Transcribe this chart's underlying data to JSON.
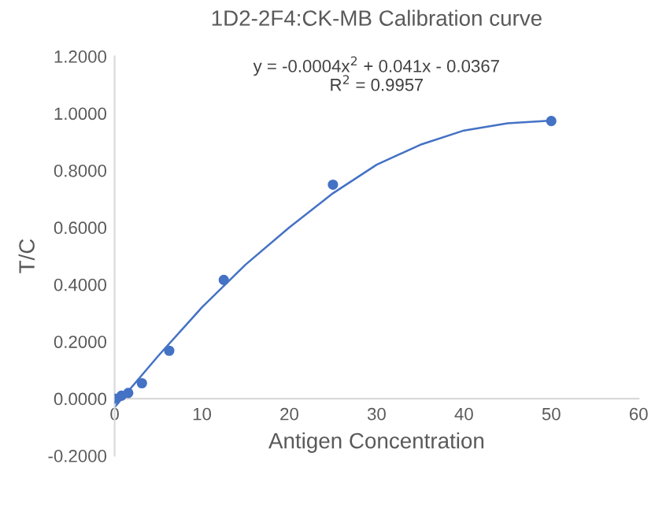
{
  "chart_data": {
    "type": "scatter",
    "title": "1D2-2F4:CK-MB Calibration curve",
    "xlabel": "Antigen Concentration",
    "ylabel": "T/C",
    "annotations": [
      "y = -0.0004x$^{2}$ + 0.041x - 0.0367",
      "R$^{2}$ = 0.9957"
    ],
    "series": [
      {
        "color": "#4472c4",
        "x": [
          0,
          0.78,
          1.56,
          3.125,
          6.25,
          12.5,
          25,
          50
        ],
        "values": [
          0.0,
          0.01,
          0.02,
          0.054,
          0.168,
          0.416,
          0.75,
          0.973
        ],
        "marker": "circle"
      },
      {
        "type": "line",
        "color": "#4472c4",
        "x": [
          0,
          5,
          10,
          15,
          20,
          25,
          30,
          35,
          40,
          45,
          50
        ],
        "values": [
          -0.03,
          0.15,
          0.32,
          0.47,
          0.6,
          0.72,
          0.82,
          0.89,
          0.94,
          0.965,
          0.975
        ],
        "marker": "none"
      }
    ],
    "xlim": [
      0,
      60
    ],
    "xticks": [
      0,
      10,
      20,
      30,
      40,
      50,
      60
    ],
    "ylim": [
      -0.2,
      1.2
    ],
    "yticks": [
      {
        "value": -0.2,
        "label": "-0.2000"
      },
      {
        "value": 0,
        "label": "0.0000"
      },
      {
        "value": 0.2,
        "label": "0.2000"
      },
      {
        "value": 0.4,
        "label": "0.4000"
      },
      {
        "value": 0.6,
        "label": "0.6000"
      },
      {
        "value": 0.8,
        "label": "0.8000"
      },
      {
        "value": 1.0,
        "label": "1.0000"
      },
      {
        "value": 1.2,
        "label": "1.2000"
      }
    ],
    "grid": false,
    "legend": false
  }
}
